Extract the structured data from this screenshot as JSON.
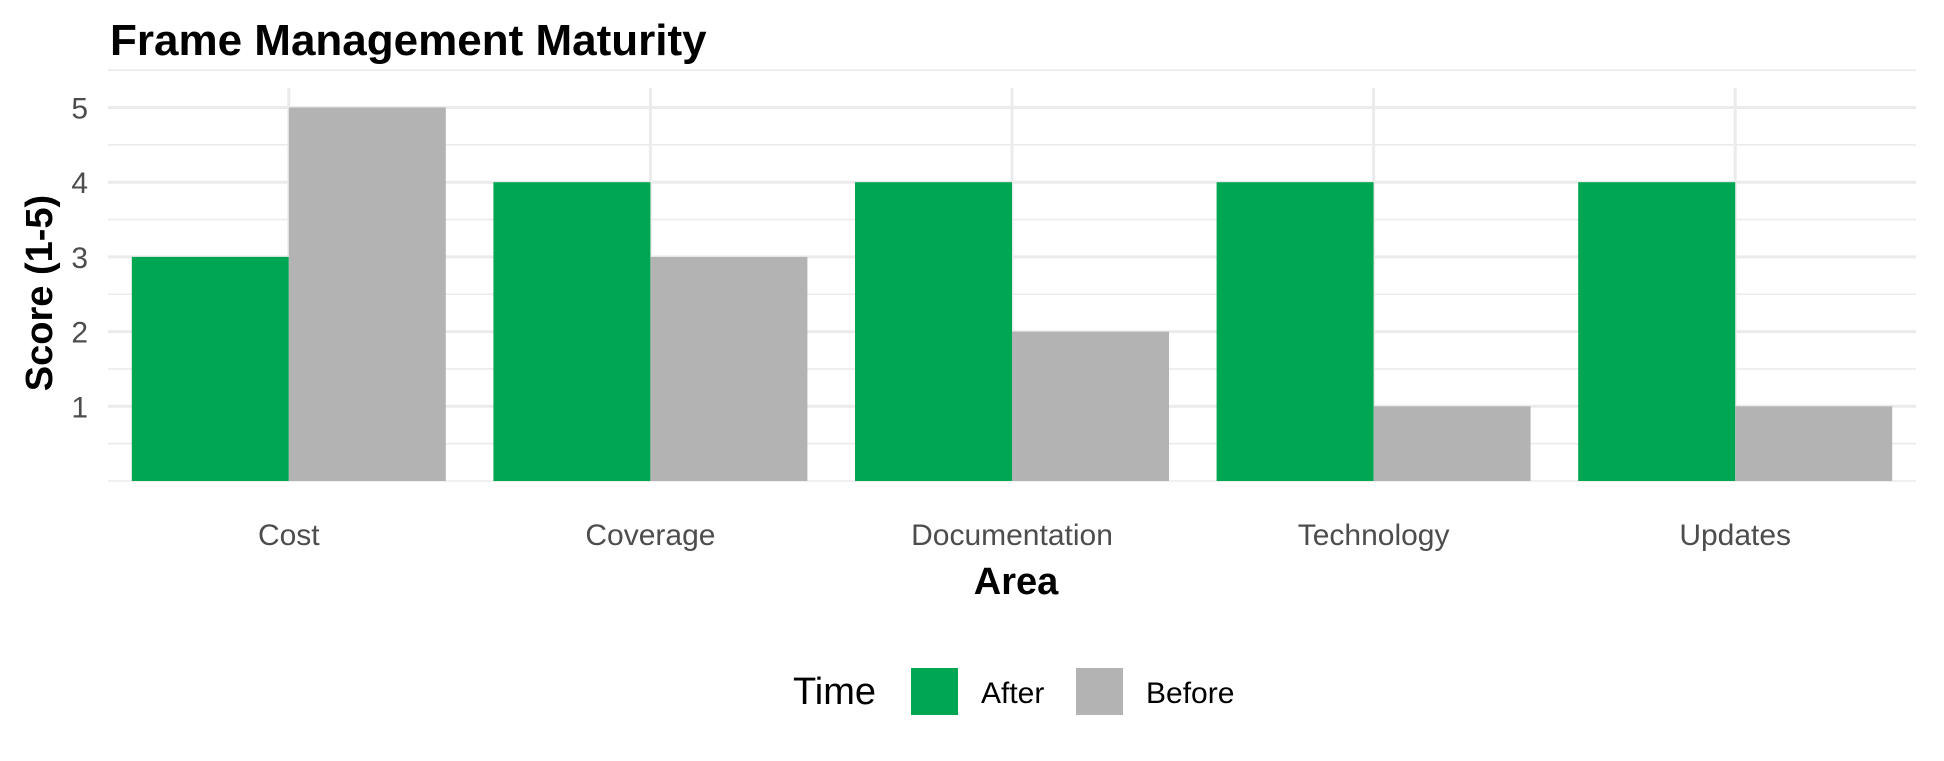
{
  "chart_data": {
    "type": "bar",
    "title": "Frame Management Maturity",
    "xlabel": "Area",
    "ylabel": "Score (1-5)",
    "categories": [
      "Cost",
      "Coverage",
      "Documentation",
      "Technology",
      "Updates"
    ],
    "series": [
      {
        "name": "After",
        "values": [
          3,
          4,
          4,
          4,
          4
        ],
        "color": "#00a651"
      },
      {
        "name": "Before",
        "values": [
          5,
          3,
          2,
          1,
          1
        ],
        "color": "#b3b3b3"
      }
    ],
    "ylim": [
      0,
      5
    ],
    "yticks": [
      1,
      2,
      3,
      4,
      5
    ],
    "grid": true,
    "legend": {
      "title": "Time",
      "position": "bottom"
    }
  }
}
